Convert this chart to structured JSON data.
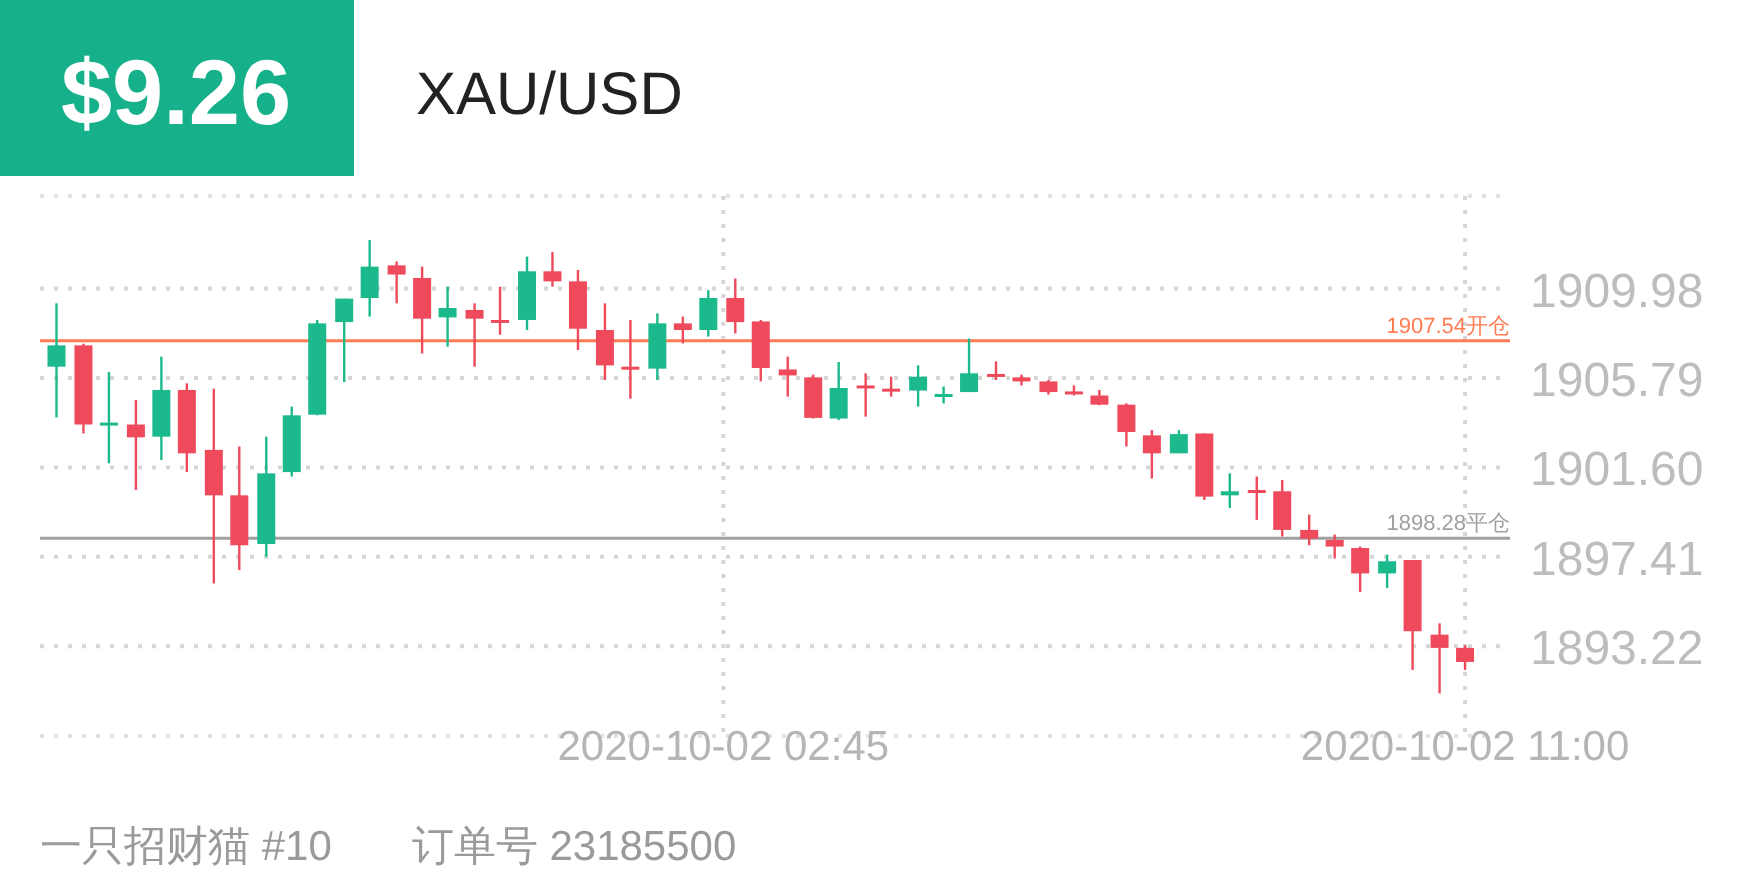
{
  "chart_data": {
    "type": "candlestick",
    "title": "XAU/USD",
    "subtitle": "$9.26",
    "x": [
      "2020-10-01T19:20",
      "2020-10-01T19:38",
      "2020-10-01T19:55",
      "2020-10-01T20:13",
      "2020-10-01T20:30",
      "2020-10-01T20:47",
      "2020-10-01T21:05",
      "2020-10-01T21:22",
      "2020-10-01T21:40",
      "2020-10-01T21:57",
      "2020-10-01T22:14",
      "2020-10-01T22:32",
      "2020-10-01T22:49",
      "2020-10-01T23:07",
      "2020-10-01T23:24",
      "2020-10-01T23:41",
      "2020-10-01T23:59",
      "2020-10-02T00:16",
      "2020-10-02T00:34",
      "2020-10-02T00:51",
      "2020-10-02T01:08",
      "2020-10-02T01:26",
      "2020-10-02T01:43",
      "2020-10-02T02:01",
      "2020-10-02T02:18",
      "2020-10-02T02:35",
      "2020-10-02T02:53",
      "2020-10-02T03:10",
      "2020-10-02T03:28",
      "2020-10-02T03:45",
      "2020-10-02T04:02",
      "2020-10-02T04:20",
      "2020-10-02T04:37",
      "2020-10-02T04:55",
      "2020-10-02T05:12",
      "2020-10-02T05:29",
      "2020-10-02T05:47",
      "2020-10-02T06:04",
      "2020-10-02T06:22",
      "2020-10-02T06:39",
      "2020-10-02T06:56",
      "2020-10-02T07:14",
      "2020-10-02T07:31",
      "2020-10-02T07:49",
      "2020-10-02T08:06",
      "2020-10-02T08:23",
      "2020-10-02T08:41",
      "2020-10-02T08:58",
      "2020-10-02T09:16",
      "2020-10-02T09:33",
      "2020-10-02T09:50",
      "2020-10-02T10:08",
      "2020-10-02T10:25",
      "2020-10-02T10:43",
      "2020-10-02T11:00"
    ],
    "ohlc": [
      [
        1906.32,
        1909.29,
        1903.94,
        1907.32
      ],
      [
        1907.32,
        1907.4,
        1903.19,
        1903.61
      ],
      [
        1903.6,
        1906.07,
        1901.79,
        1903.7
      ],
      [
        1903.61,
        1904.76,
        1900.54,
        1903.01
      ],
      [
        1903.04,
        1906.79,
        1901.95,
        1905.23
      ],
      [
        1905.23,
        1905.54,
        1901.38,
        1902.26
      ],
      [
        1902.42,
        1905.29,
        1896.16,
        1900.29
      ],
      [
        1900.29,
        1902.58,
        1896.79,
        1897.95
      ],
      [
        1898.01,
        1903.04,
        1897.42,
        1901.32
      ],
      [
        1901.38,
        1904.45,
        1901.17,
        1904.04
      ],
      [
        1904.07,
        1908.51,
        1904.04,
        1908.35
      ],
      [
        1908.41,
        1909.51,
        1905.6,
        1909.51
      ],
      [
        1909.54,
        1912.26,
        1908.67,
        1911.01
      ],
      [
        1911.07,
        1911.25,
        1909.29,
        1910.64
      ],
      [
        1910.48,
        1911.01,
        1906.94,
        1908.57
      ],
      [
        1908.63,
        1910.07,
        1907.26,
        1909.07
      ],
      [
        1908.98,
        1909.29,
        1906.32,
        1908.57
      ],
      [
        1908.51,
        1910.07,
        1907.82,
        1908.41
      ],
      [
        1908.51,
        1911.48,
        1908.04,
        1910.79
      ],
      [
        1910.79,
        1911.69,
        1910.07,
        1910.32
      ],
      [
        1910.32,
        1910.85,
        1907.1,
        1908.1
      ],
      [
        1908.04,
        1909.29,
        1905.7,
        1906.38
      ],
      [
        1906.32,
        1908.51,
        1904.82,
        1906.19
      ],
      [
        1906.23,
        1908.82,
        1905.7,
        1908.35
      ],
      [
        1908.35,
        1908.67,
        1907.41,
        1908.04
      ],
      [
        1908.04,
        1909.91,
        1907.73,
        1909.54
      ],
      [
        1909.54,
        1910.45,
        1907.88,
        1908.41
      ],
      [
        1908.44,
        1908.51,
        1905.63,
        1906.26
      ],
      [
        1906.19,
        1906.79,
        1904.92,
        1905.91
      ],
      [
        1905.82,
        1905.95,
        1903.89,
        1903.92
      ],
      [
        1903.89,
        1906.54,
        1903.82,
        1905.32
      ],
      [
        1905.44,
        1906.01,
        1903.98,
        1905.39
      ],
      [
        1905.29,
        1905.85,
        1904.92,
        1905.2
      ],
      [
        1905.2,
        1906.38,
        1904.45,
        1905.85
      ],
      [
        1904.97,
        1905.39,
        1904.6,
        1905.04
      ],
      [
        1905.13,
        1907.64,
        1905.13,
        1906.01
      ],
      [
        1905.98,
        1906.57,
        1905.7,
        1905.88
      ],
      [
        1905.82,
        1905.95,
        1905.44,
        1905.63
      ],
      [
        1905.63,
        1905.7,
        1905.01,
        1905.13
      ],
      [
        1905.16,
        1905.44,
        1904.97,
        1905.04
      ],
      [
        1904.97,
        1905.23,
        1904.51,
        1904.54
      ],
      [
        1904.54,
        1904.6,
        1902.58,
        1903.26
      ],
      [
        1903.1,
        1903.35,
        1901.08,
        1902.26
      ],
      [
        1902.26,
        1903.35,
        1902.26,
        1903.16
      ],
      [
        1903.19,
        1903.19,
        1900.07,
        1900.23
      ],
      [
        1900.29,
        1901.32,
        1899.7,
        1900.48
      ],
      [
        1900.54,
        1901.17,
        1899.14,
        1900.48
      ],
      [
        1900.48,
        1901.01,
        1898.36,
        1898.67
      ],
      [
        1898.67,
        1899.39,
        1897.95,
        1898.26
      ],
      [
        1898.2,
        1898.45,
        1897.33,
        1897.89
      ],
      [
        1897.82,
        1897.89,
        1895.76,
        1896.63
      ],
      [
        1896.63,
        1897.51,
        1895.95,
        1897.2
      ],
      [
        1897.26,
        1897.26,
        1892.11,
        1893.92
      ],
      [
        1893.76,
        1894.29,
        1891.01,
        1893.14
      ],
      [
        1893.14,
        1893.26,
        1892.11,
        1892.48
      ]
    ],
    "colors": [
      "#1bb98c",
      "#ee4a5b",
      "#1bb98c",
      "#ee4a5b",
      "#1bb98c",
      "#ee4a5b",
      "#ee4a5b",
      "#ee4a5b",
      "#1bb98c",
      "#1bb98c",
      "#1bb98c",
      "#1bb98c",
      "#1bb98c",
      "#ee4a5b",
      "#ee4a5b",
      "#1bb98c",
      "#ee4a5b",
      "#ee4a5b",
      "#1bb98c",
      "#ee4a5b",
      "#ee4a5b",
      "#ee4a5b",
      "#ee4a5b",
      "#1bb98c",
      "#ee4a5b",
      "#1bb98c",
      "#ee4a5b",
      "#ee4a5b",
      "#ee4a5b",
      "#ee4a5b",
      "#1bb98c",
      "#ee4a5b",
      "#ee4a5b",
      "#1bb98c",
      "#1bb98c",
      "#1bb98c",
      "#ee4a5b",
      "#ee4a5b",
      "#ee4a5b",
      "#ee4a5b",
      "#ee4a5b",
      "#ee4a5b",
      "#ee4a5b",
      "#1bb98c",
      "#ee4a5b",
      "#1bb98c",
      "#ee4a5b",
      "#ee4a5b",
      "#ee4a5b",
      "#ee4a5b",
      "#ee4a5b",
      "#1bb98c",
      "#ee4a5b",
      "#ee4a5b",
      "#ee4a5b"
    ],
    "xlim": [
      "2020-10-01T19:09",
      "2020-10-02T11:30"
    ],
    "xticks": [
      {
        "value": "2020-10-02T02:45",
        "label": "2020-10-02 02:45"
      },
      {
        "value": "2020-10-02T11:00",
        "label": "2020-10-02 11:00"
      }
    ],
    "ylim": [
      1889.01,
      1914.32
    ],
    "yticks": [
      1893.22,
      1897.41,
      {
        "value": 1901.6,
        "label": "1901.60"
      },
      1905.79,
      1909.98
    ],
    "grid": true,
    "ref_lines": [
      {
        "axis": "y",
        "value": 1907.54,
        "label": "1907.54开仓",
        "color": "#ff7b52"
      },
      {
        "axis": "y",
        "value": 1898.28,
        "label": "1898.28平仓",
        "color": "#a0a0a0"
      }
    ],
    "annotations": [
      "一只招财猫 #10",
      "订单号 23185500"
    ]
  }
}
